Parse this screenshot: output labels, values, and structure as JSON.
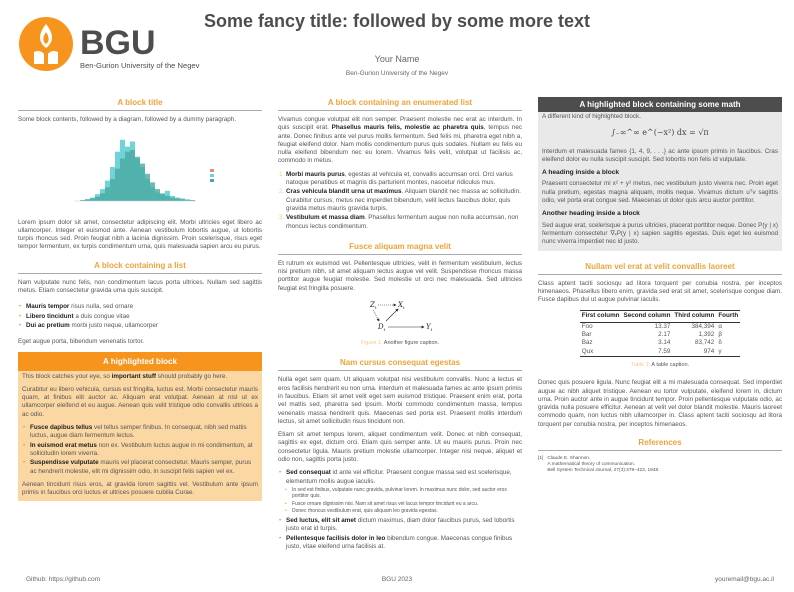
{
  "header": {
    "logo_text": "BGU",
    "logo_subtitle": "Ben-Gurion University of the Negev",
    "title": "Some fancy title: followed by some more text",
    "author": "Your Name",
    "institute": "Ben-Gurion University of the Negev"
  },
  "colors": {
    "accent": "#f7941d",
    "heading": "#f0a33a",
    "highlight_bg": "#fbd7a4",
    "dark_block": "#4d4d4d",
    "grey_bg": "#e9e9e9"
  },
  "col1": {
    "block1": {
      "title": "A block title",
      "intro": "Some block contents, followed by a diagram, followed by a dummy paragraph.",
      "para": "Lorem ipsum dolor sit amet, consectetur adipiscing elit. Morbi ultricies eget libero ac ullamcorper. Integer et euismod ante. Aenean vestibulum lobortis augue, ut lobortis turpis rhoncus sed. Proin feugiat nibh a lacinia dignissim. Proin scelerisque, risus eget tempor fermentum, ex turpis condimentum urna, quis malesuada sapien arcu eu purus."
    },
    "block2": {
      "title": "A block containing a list",
      "intro": "Nam vulputate nunc felis, non condimentum lacus porta ultrices. Nullam sed sagittis metus. Etiam consectetur gravida urna quis suscipit.",
      "items": [
        {
          "b": "Mauris tempor",
          "t": " risus nulla, sed ornare"
        },
        {
          "b": "Libero tincidunt",
          "t": " a duis congue vitae"
        },
        {
          "b": "Dui ac pretium",
          "t": " morbi justo neque, ullamcorper"
        }
      ],
      "outro": "Eget augue porta, bibendum venenatis tortor."
    },
    "block3": {
      "title": "A highlighted block",
      "l1a": "This block catches your eye, so ",
      "l1b": "important stuff",
      "l1c": " should probably go here.",
      "para": "Curabitur eu libero vehicula, cursus est fringilla, luctus est. Morbi consectetur mauris quam, at finibus elit auctor ac. Aliquam erat volutpat. Aenean at nisl ut ex ullamcorper eleifend et eu augue. Aenean quis velit tristique odio convallis ultrices a ac odio.",
      "items": [
        {
          "b": "Fusce dapibus tellus",
          "t": " vel tellus semper finibus. In consequat, nibh sed mattis luctus, augue diam fermentum lectus."
        },
        {
          "b": "In euismod erat metus",
          "t": " non ex. Vestibulum luctus augue in mi condimentum, at sollicitudin lorem viverra."
        },
        {
          "b": "Suspendisse vulputate",
          "t": " mauris vel placerat consectetur. Mauris semper, purus ac hendrerit molestie, elit mi dignissim odio, in suscipit felis sapien vel ex."
        }
      ],
      "outro": "Aenean tincidunt risus eros, at gravida lorem sagittis vel. Vestibulum ante ipsum primis in faucibus orci luctus et ultrices posuere cubilia Curae."
    }
  },
  "col2": {
    "block1": {
      "title": "A block containing an enumerated list",
      "p1": "Vivamus congue volutpat elit non semper. Praesent molestie nec erat ac interdum. In quis suscipit erat. ",
      "p1b": "Phasellus mauris felis, molestie ac pharetra quis",
      "p1c": ", tempus nec ante. Donec finibus ante vel purus mollis fermentum. Sed felis mi, pharetra eget nibh a, feugiat eleifend dolor. Nam mollis condimentum purus quis sodales. Nullam eu felis eu nulla eleifend bibendum nec eu lorem. Vivamus felis velit, volutpat ut facilisis ac, commodo in metus.",
      "items": [
        {
          "n": "1.",
          "b": "Morbi mauris purus",
          "t": ", egestas at vehicula et, convallis accumsan orci. Orci varius natoque penatibus et magnis dis parturient montes, nascetur ridiculus mus."
        },
        {
          "n": "2.",
          "b": "Cras vehicula blandit urna ut maximus",
          "t": ". Aliquam blandit nec massa ac sollicitudin. Curabitur cursus, metus nec imperdiet bibendum, velit lectus faucibus dolor, quis gravida metus mauris gravida turpis."
        },
        {
          "n": "3.",
          "b": "Vestibulum et massa diam",
          "t": ". Phasellus fermentum augue non nulla accumsan, non rhoncus lectus condimentum."
        }
      ]
    },
    "block2": {
      "title": "Fusce aliquam magna velit",
      "para": "Et rutrum ex euismod vel. Pellentesque ultricies, velit in fermentum vestibulum, lectus nisi pretium nibh, sit amet aliquam lectus augue vel velit. Suspendisse rhoncus massa porttitor augue feugiat molestie. Sed molestie ut orci nec malesuada. Sed ultricies feugiat est fringilla posuere.",
      "diagram": {
        "z": "Z",
        "x": "X",
        "d": "D",
        "y": "Y",
        "sub": "t"
      },
      "cap_label": "Figure 1:",
      "caption": " Another figure caption."
    },
    "block3": {
      "title": "Nam cursus consequat egestas",
      "p1": "Nulla eget sem quam. Ut aliquam volutpat nisi vestibulum convallis. Nunc a lectus et eros facilisis hendrerit eu non urna. Interdum et malesuada fames ac ante ipsum primis in faucibus. Etiam sit amet velit eget sem euismod tristique. Praesent enim erat, porta vel mattis sed, pharetra sed ipsum. Morbi commodo condimentum massa, tempus venenatis massa hendrerit quis. Maecenas sed porta est. Praesent mollis interdum lectus, sit amet sollicitudin risus tincidunt non.",
      "p2": "Etiam sit amet tempus lorem, aliquet condimentum velit. Donec et nibh consequat, sagittis ex eget, dictum orci. Etiam quis semper ante. Ut eu mauris purus. Proin nec consectetur ligula. Mauris pretium molestie ullamcorper. Integer nisi neque, aliquet et odio non, sagittis porta justo.",
      "i1b": "Sed consequat",
      "i1t": " id ante vel efficitur. Praesent congue massa sed est scelerisque, elementum mollis augue iaculis.",
      "sub": [
        "In sed est finibus, vulputate nunc gravida, pulvinar lorem. In maximus nunc dolor, sed auctor eros porttitor quis.",
        "Fusce ornare dignissim nisi. Nam sit amet risus vel lacus tempor tincidunt eu a arcu.",
        "Donec rhoncus vestibulum erat, quis aliquam leo gravida egestas."
      ],
      "i2b": "Sed luctus, elit sit amet",
      "i2t": " dictum maximus, diam dolor faucibus purus, sed lobortis justo erat id turpis.",
      "i3b": "Pellentesque facilisis dolor in leo",
      "i3t": " bibendum congue. Maecenas congue finibus justo, vitae eleifend urna facilisis at."
    }
  },
  "col3": {
    "block1": {
      "title": "A highlighted block containing some math",
      "intro": "A different kind of highlighted block.",
      "equation": "∫₋∞^∞ e^(−x²) dx = √π",
      "p1": "Interdum et malesuada fames {1, 4, 9, . . .} ac ante ipsum primis in faucibus. Cras eleifend dolor eu nulla suscipit suscipit. Sed lobortis non felis id vulputate.",
      "h1": "A heading inside a block",
      "p2": "Praesent consectetur mi x² + y² metus, nec vestibulum justo viverra nec. Proin eget nulla pretium, egestas magna aliquam, mollis neque. Vivamus dictum uᵀv sagittis odio, vel porta erat congue sed. Maecenas ut dolor quis arcu auctor porttitor.",
      "h2": "Another heading inside a block",
      "p3": "Sed augue erat, scelerisque a purus ultricies, placerat porttitor neque. Donec P(y | x) fermentum consectetur ∇ₓP(y | x) sapien sagittis egestas. Duis eget leo euismod nunc viverra imperdiet nec id justo."
    },
    "block2": {
      "title": "Nullam vel erat at velit convallis laoreet",
      "p1": "Class aptent taciti sociosqu ad litora torquent per conubia nostra, per inceptos himenaeos. Phasellus libero enim, gravida sed erat sit amet, scelerisque congue diam. Fusce dapibus dui ut augue pulvinar iaculis.",
      "table": {
        "headers": [
          "First column",
          "Second column",
          "Third column",
          "Fourth"
        ],
        "rows": [
          [
            "Foo",
            "13.37",
            "384,394",
            "α"
          ],
          [
            "Bar",
            "2.17",
            "1,392",
            "β"
          ],
          [
            "Baz",
            "3.14",
            "83,742",
            "δ"
          ],
          [
            "Qux",
            "7.59",
            "974",
            "γ"
          ]
        ]
      },
      "cap_label": "Table 1:",
      "caption": " A table caption.",
      "p2": "Donec quis posuere ligula. Nunc feugiat elit a mi malesuada consequat. Sed imperdiet augue ac nibh aliquet tristique. Aenean eu tortor vulputate, eleifend lorem in, dictum urna. Proin auctor ante in augue tincidunt tempor. Proin pellentesque vulputate odio, ac gravida nulla posuere efficitur. Aenean at velit vel dolor blandit molestie. Mauris laoreet commodo quam, non luctus nibh ullamcorper in. Class aptent taciti sociosqu ad litora torquent per conubia nostra, per inceptos himenaeos."
    },
    "refs": {
      "title": "References",
      "items": [
        {
          "n": "[1]",
          "l1": "Claude E. Shannon.",
          "l2": "A mathematical theory of communication.",
          "l3": "Bell System Technical Journal, 27(3):379–423, 1948."
        }
      ]
    }
  },
  "footer": {
    "left": "Github: https://github.com",
    "center": "BGU 2023",
    "right": "youremail@bgu.ac.il"
  }
}
